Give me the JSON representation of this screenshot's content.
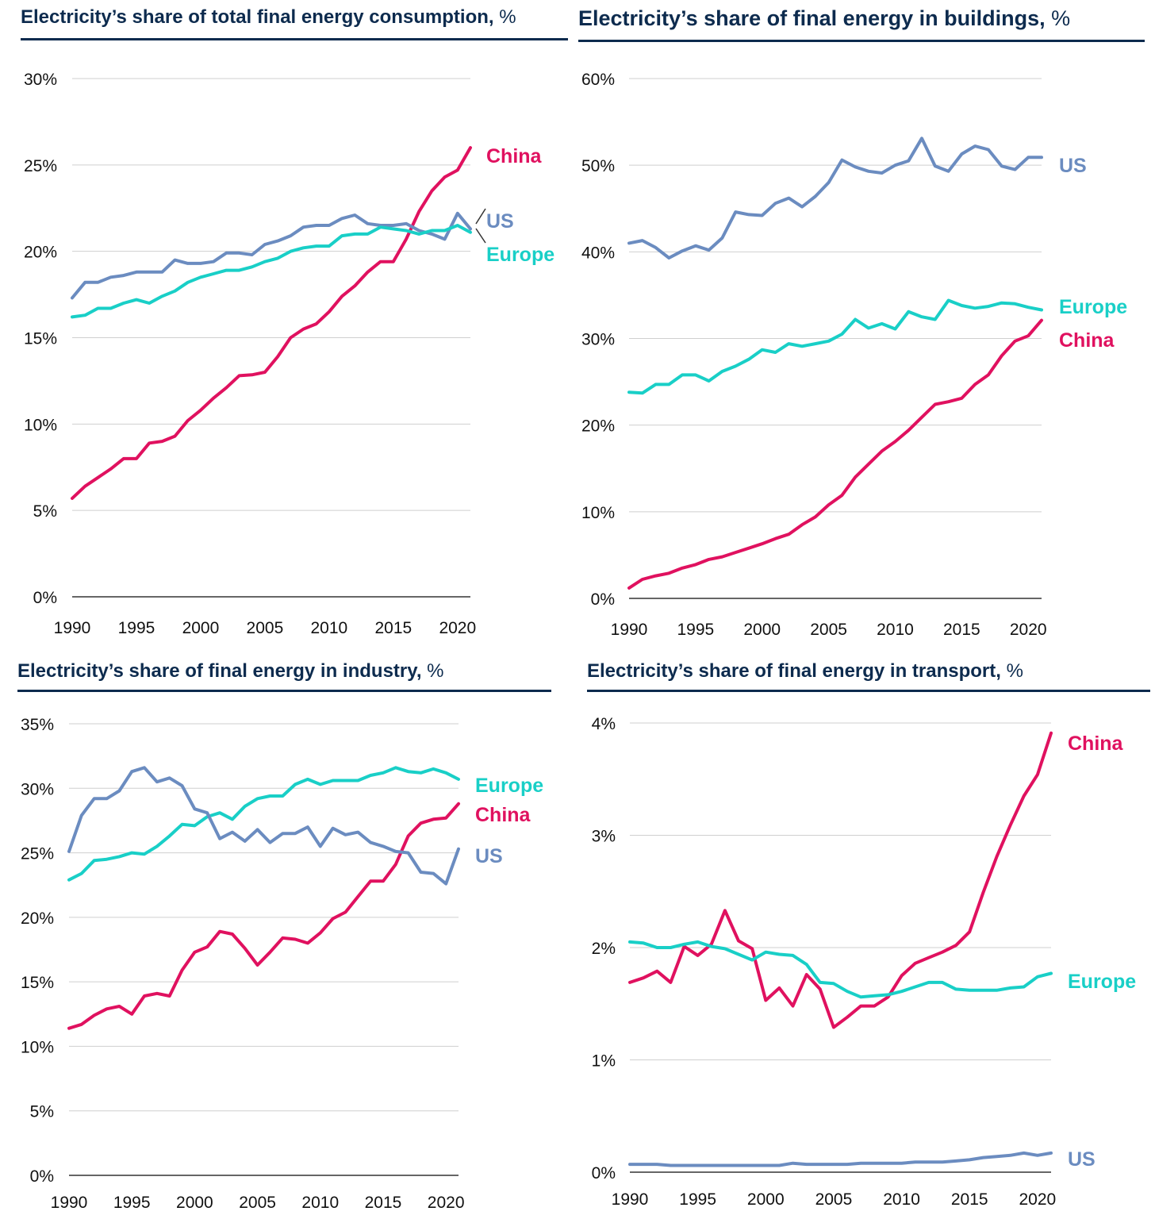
{
  "colors": {
    "china": "#e0115f",
    "us": "#6b8cc0",
    "europe": "#19cfc7",
    "title": "#0d2b4e",
    "grid": "#cfcfcf",
    "axis": "#333333"
  },
  "chart_data": [
    {
      "type": "line",
      "title": "Electricity’s share of total final energy consumption,",
      "unit": "%",
      "ylim": [
        0,
        30
      ],
      "yticks": [
        "0%",
        "5%",
        "10%",
        "15%",
        "20%",
        "25%",
        "30%"
      ],
      "ytick_values": [
        0,
        5,
        10,
        15,
        20,
        25,
        30
      ],
      "xlim": [
        1990,
        2021
      ],
      "xticks": [
        "1990",
        "1995",
        "2000",
        "2005",
        "2010",
        "2015",
        "2020"
      ],
      "xtick_values": [
        1990,
        1995,
        2000,
        2005,
        2010,
        2015,
        2020
      ],
      "grid": true,
      "x_start": 1990,
      "series": [
        {
          "name": "China",
          "color": "#e0115f",
          "values": [
            5.7,
            6.4,
            6.9,
            7.4,
            8.0,
            8.0,
            8.9,
            9.0,
            9.3,
            10.2,
            10.8,
            11.5,
            12.1,
            12.8,
            12.85,
            13.0,
            13.9,
            15.0,
            15.5,
            15.8,
            16.5,
            17.4,
            18.0,
            18.8,
            19.4,
            19.4,
            20.7,
            22.3,
            23.5,
            24.3,
            24.7,
            26.0
          ]
        },
        {
          "name": "US",
          "color": "#6b8cc0",
          "values": [
            17.3,
            18.2,
            18.2,
            18.5,
            18.6,
            18.8,
            18.8,
            18.8,
            19.5,
            19.3,
            19.3,
            19.4,
            19.9,
            19.9,
            19.8,
            20.4,
            20.6,
            20.9,
            21.4,
            21.5,
            21.5,
            21.9,
            22.1,
            21.6,
            21.5,
            21.5,
            21.6,
            21.2,
            21.0,
            20.7,
            22.2,
            21.3
          ]
        },
        {
          "name": "Europe",
          "color": "#19cfc7",
          "values": [
            16.2,
            16.3,
            16.7,
            16.7,
            17.0,
            17.2,
            17.0,
            17.4,
            17.7,
            18.2,
            18.5,
            18.7,
            18.9,
            18.9,
            19.1,
            19.4,
            19.6,
            20.0,
            20.2,
            20.3,
            20.3,
            20.9,
            21.0,
            21.0,
            21.4,
            21.3,
            21.2,
            21.0,
            21.2,
            21.2,
            21.5,
            21.1
          ]
        }
      ]
    },
    {
      "type": "line",
      "title": "Electricity’s share of final energy in buildings,",
      "unit": "%",
      "ylim": [
        0,
        60
      ],
      "yticks": [
        "0%",
        "10%",
        "20%",
        "30%",
        "40%",
        "50%",
        "60%"
      ],
      "ytick_values": [
        0,
        10,
        20,
        30,
        40,
        50,
        60
      ],
      "xlim": [
        1990,
        2021
      ],
      "xticks": [
        "1990",
        "1995",
        "2000",
        "2005",
        "2010",
        "2015",
        "2020"
      ],
      "xtick_values": [
        1990,
        1995,
        2000,
        2005,
        2010,
        2015,
        2020
      ],
      "grid": true,
      "x_start": 1990,
      "series": [
        {
          "name": "US",
          "color": "#6b8cc0",
          "values": [
            41.0,
            41.3,
            40.5,
            39.3,
            40.1,
            40.7,
            40.2,
            41.6,
            44.6,
            44.3,
            44.2,
            45.6,
            46.2,
            45.2,
            46.4,
            48.0,
            50.6,
            49.8,
            49.3,
            49.1,
            50.0,
            50.5,
            53.1,
            49.9,
            49.3,
            51.3,
            52.2,
            51.8,
            49.9,
            49.5,
            50.9,
            50.9
          ]
        },
        {
          "name": "Europe",
          "color": "#19cfc7",
          "values": [
            23.8,
            23.7,
            24.7,
            24.7,
            25.8,
            25.8,
            25.1,
            26.2,
            26.8,
            27.6,
            28.7,
            28.4,
            29.4,
            29.1,
            29.4,
            29.7,
            30.5,
            32.2,
            31.2,
            31.7,
            31.1,
            33.1,
            32.5,
            32.2,
            34.4,
            33.8,
            33.5,
            33.7,
            34.1,
            34.0,
            33.6,
            33.3
          ]
        },
        {
          "name": "China",
          "color": "#e0115f",
          "values": [
            1.2,
            2.2,
            2.6,
            2.9,
            3.5,
            3.9,
            4.5,
            4.8,
            5.3,
            5.8,
            6.3,
            6.9,
            7.4,
            8.5,
            9.4,
            10.8,
            11.9,
            14.0,
            15.5,
            17.0,
            18.1,
            19.4,
            20.9,
            22.4,
            22.7,
            23.1,
            24.7,
            25.8,
            28.0,
            29.7,
            30.3,
            32.1
          ]
        }
      ]
    },
    {
      "type": "line",
      "title": "Electricity’s share of final energy in industry,",
      "unit": "%",
      "ylim": [
        0,
        35
      ],
      "yticks": [
        "0%",
        "5%",
        "10%",
        "15%",
        "20%",
        "25%",
        "30%",
        "35%"
      ],
      "ytick_values": [
        0,
        5,
        10,
        15,
        20,
        25,
        30,
        35
      ],
      "xlim": [
        1990,
        2021
      ],
      "xticks": [
        "1990",
        "1995",
        "2000",
        "2005",
        "2010",
        "2015",
        "2020"
      ],
      "xtick_values": [
        1990,
        1995,
        2000,
        2005,
        2010,
        2015,
        2020
      ],
      "grid": true,
      "x_start": 1990,
      "series": [
        {
          "name": "Europe",
          "color": "#19cfc7",
          "values": [
            22.9,
            23.4,
            24.4,
            24.5,
            24.7,
            25.0,
            24.9,
            25.5,
            26.3,
            27.2,
            27.1,
            27.8,
            28.1,
            27.6,
            28.6,
            29.2,
            29.4,
            29.4,
            30.3,
            30.7,
            30.3,
            30.6,
            30.6,
            30.6,
            31.0,
            31.2,
            31.6,
            31.3,
            31.2,
            31.5,
            31.2,
            30.7
          ]
        },
        {
          "name": "China",
          "color": "#e0115f",
          "values": [
            11.4,
            11.7,
            12.4,
            12.9,
            13.1,
            12.5,
            13.9,
            14.1,
            13.9,
            15.9,
            17.3,
            17.7,
            18.9,
            18.7,
            17.6,
            16.3,
            17.3,
            18.4,
            18.3,
            18.0,
            18.8,
            19.9,
            20.4,
            21.6,
            22.8,
            22.8,
            24.1,
            26.3,
            27.3,
            27.6,
            27.7,
            28.8
          ]
        },
        {
          "name": "US",
          "color": "#6b8cc0",
          "values": [
            25.1,
            27.9,
            29.2,
            29.2,
            29.8,
            31.3,
            31.6,
            30.5,
            30.8,
            30.2,
            28.4,
            28.1,
            26.1,
            26.6,
            25.9,
            26.8,
            25.8,
            26.5,
            26.5,
            27.0,
            25.5,
            26.9,
            26.4,
            26.6,
            25.8,
            25.5,
            25.1,
            25.0,
            23.5,
            23.4,
            22.6,
            25.3
          ]
        }
      ]
    },
    {
      "type": "line",
      "title": "Electricity’s share of final energy in transport,",
      "unit": "%",
      "ylim": [
        0,
        4
      ],
      "yticks": [
        "0%",
        "1%",
        "2%",
        "3%",
        "4%"
      ],
      "ytick_values": [
        0,
        1,
        2,
        3,
        4
      ],
      "xlim": [
        1990,
        2021
      ],
      "xticks": [
        "1990",
        "1995",
        "2000",
        "2005",
        "2010",
        "2015",
        "2020"
      ],
      "xtick_values": [
        1990,
        1995,
        2000,
        2005,
        2010,
        2015,
        2020
      ],
      "grid": true,
      "x_start": 1990,
      "series": [
        {
          "name": "China",
          "color": "#e0115f",
          "values": [
            1.69,
            1.73,
            1.79,
            1.69,
            2.01,
            1.93,
            2.03,
            2.33,
            2.06,
            1.99,
            1.53,
            1.64,
            1.48,
            1.76,
            1.63,
            1.29,
            1.38,
            1.48,
            1.48,
            1.56,
            1.75,
            1.86,
            1.91,
            1.96,
            2.02,
            2.14,
            2.49,
            2.81,
            3.09,
            3.35,
            3.54,
            3.91
          ]
        },
        {
          "name": "Europe",
          "color": "#19cfc7",
          "values": [
            2.05,
            2.04,
            2.0,
            2.0,
            2.03,
            2.05,
            2.01,
            1.99,
            1.94,
            1.89,
            1.96,
            1.94,
            1.93,
            1.85,
            1.69,
            1.68,
            1.61,
            1.56,
            1.57,
            1.58,
            1.61,
            1.65,
            1.69,
            1.69,
            1.63,
            1.62,
            1.62,
            1.62,
            1.64,
            1.65,
            1.74,
            1.77
          ]
        },
        {
          "name": "US",
          "color": "#6b8cc0",
          "values": [
            0.07,
            0.07,
            0.07,
            0.06,
            0.06,
            0.06,
            0.06,
            0.06,
            0.06,
            0.06,
            0.06,
            0.06,
            0.08,
            0.07,
            0.07,
            0.07,
            0.07,
            0.08,
            0.08,
            0.08,
            0.08,
            0.09,
            0.09,
            0.09,
            0.1,
            0.11,
            0.13,
            0.14,
            0.15,
            0.17,
            0.15,
            0.17
          ]
        }
      ]
    }
  ]
}
